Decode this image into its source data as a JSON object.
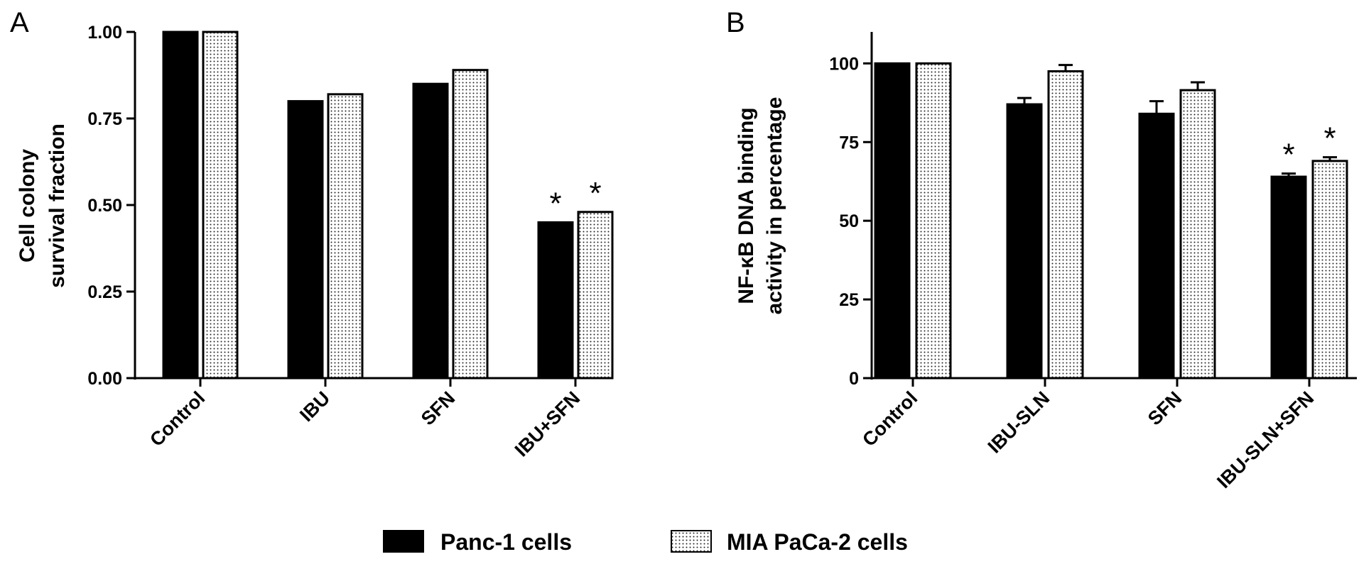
{
  "legend": [
    {
      "label": "Panc-1 cells",
      "style": "solid",
      "color": "#000000"
    },
    {
      "label": "MIA PaCa-2 cells",
      "style": "dotted",
      "color": "#ffffff"
    }
  ],
  "chart_data": [
    {
      "panel": "A",
      "type": "bar",
      "ylabel": [
        "Cell colony",
        "survival fraction"
      ],
      "ylim": [
        0,
        1.0
      ],
      "yticks": [
        "0.00",
        "0.25",
        "0.50",
        "0.75",
        "1.00"
      ],
      "categories": [
        "Control",
        "IBU",
        "SFN",
        "IBU+SFN"
      ],
      "series": [
        {
          "name": "Panc-1 cells",
          "values": [
            1.0,
            0.8,
            0.85,
            0.45
          ],
          "errors": [
            0,
            0,
            0,
            0
          ]
        },
        {
          "name": "MIA PaCa-2 cells",
          "values": [
            1.0,
            0.82,
            0.89,
            0.48
          ],
          "errors": [
            0,
            0,
            0,
            0
          ]
        }
      ],
      "annotations": [
        {
          "text": "*",
          "category": "IBU+SFN",
          "series": 0
        },
        {
          "text": "*",
          "category": "IBU+SFN",
          "series": 1
        }
      ],
      "grid": false
    },
    {
      "panel": "B",
      "type": "bar",
      "ylabel": [
        "NF-κB DNA binding",
        "activity in percentage"
      ],
      "ylim": [
        0,
        110
      ],
      "yticks": [
        "0",
        "25",
        "50",
        "75",
        "100"
      ],
      "categories": [
        "Control",
        "IBU-SLN",
        "SFN",
        "IBU-SLN+SFN"
      ],
      "series": [
        {
          "name": "Panc-1 cells",
          "values": [
            100,
            87,
            84,
            64
          ],
          "errors": [
            0,
            2,
            4,
            1
          ]
        },
        {
          "name": "MIA PaCa-2 cells",
          "values": [
            100,
            97.5,
            91.5,
            69
          ],
          "errors": [
            0,
            2,
            2.5,
            1.2
          ]
        }
      ],
      "annotations": [
        {
          "text": "*",
          "category": "IBU-SLN+SFN",
          "series": 0
        },
        {
          "text": "*",
          "category": "IBU-SLN+SFN",
          "series": 1
        }
      ],
      "grid": false
    }
  ]
}
